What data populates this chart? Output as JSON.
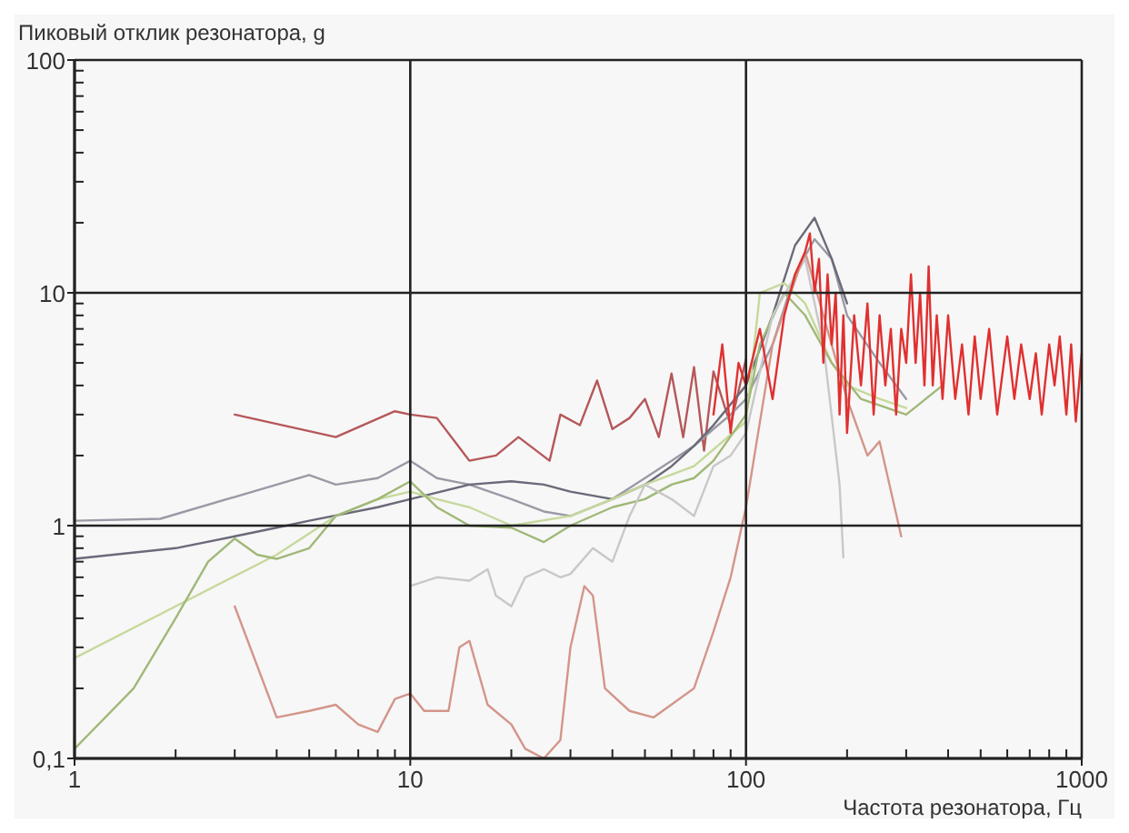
{
  "chart_data": {
    "type": "line",
    "xlabel": "Частота резонатора, Гц",
    "ylabel": "Пиковый отклик резонатора, g",
    "log": "xy",
    "grid": true,
    "xlim": [
      1,
      1000
    ],
    "xticks": [
      1,
      10,
      100,
      1000
    ],
    "ylim": [
      0.1,
      100
    ],
    "yticks": [
      {
        "value": 0.1,
        "label": "0,1"
      },
      1,
      10,
      100
    ],
    "series": [
      {
        "color": "#b5585a",
        "x": [
          3,
          6,
          9,
          10,
          12,
          15,
          18,
          21,
          26,
          28,
          32,
          36,
          40,
          45,
          50,
          55,
          60,
          65,
          70,
          75,
          80,
          90,
          100
        ],
        "values": [
          3,
          2.4,
          3.1,
          3.0,
          2.9,
          1.9,
          2.0,
          2.4,
          1.9,
          3.0,
          2.7,
          4.2,
          2.6,
          2.9,
          3.5,
          2.4,
          4.5,
          2.4,
          4.8,
          2.1,
          4.6,
          2.7,
          5.2
        ]
      },
      {
        "color": "#9a9aa6",
        "x": [
          1,
          1.8,
          5,
          6,
          8,
          10,
          12,
          15,
          20,
          25,
          30,
          40,
          50,
          60,
          70,
          80,
          90,
          100,
          120,
          140,
          160,
          180,
          200,
          250,
          300
        ],
        "values": [
          1.05,
          1.07,
          1.65,
          1.5,
          1.6,
          1.9,
          1.6,
          1.5,
          1.3,
          1.15,
          1.1,
          1.3,
          1.6,
          1.9,
          2.2,
          2.6,
          3.0,
          3.5,
          6,
          12,
          17,
          14,
          8,
          5,
          3.5
        ]
      },
      {
        "color": "#6a6a7a",
        "x": [
          1,
          2,
          3,
          4,
          5,
          8,
          10,
          15,
          20,
          25,
          30,
          40,
          50,
          60,
          70,
          80,
          100,
          120,
          140,
          160,
          180,
          200
        ],
        "values": [
          0.72,
          0.8,
          0.9,
          0.98,
          1.05,
          1.2,
          1.3,
          1.5,
          1.55,
          1.5,
          1.4,
          1.3,
          1.5,
          1.8,
          2.2,
          2.7,
          4,
          8,
          16,
          21,
          14,
          9
        ]
      },
      {
        "color": "#c6d99c",
        "x": [
          1,
          2,
          4,
          6,
          8,
          10,
          12,
          15,
          20,
          30,
          40,
          50,
          70,
          100,
          110,
          130,
          150,
          180,
          200,
          250,
          300
        ],
        "values": [
          0.27,
          0.45,
          0.75,
          1.1,
          1.3,
          1.4,
          1.3,
          1.2,
          1.0,
          1.1,
          1.3,
          1.5,
          1.8,
          2.8,
          10,
          11,
          9,
          5,
          4,
          3.5,
          3.2
        ]
      },
      {
        "color": "#a0b878",
        "x": [
          1,
          1.5,
          2,
          2.5,
          3,
          3.5,
          4,
          5,
          6,
          8,
          10,
          12,
          15,
          20,
          25,
          30,
          40,
          50,
          60,
          70,
          80,
          100,
          110,
          130,
          150,
          180,
          220,
          300,
          385
        ],
        "values": [
          0.11,
          0.2,
          0.4,
          0.7,
          0.88,
          0.75,
          0.72,
          0.8,
          1.1,
          1.3,
          1.55,
          1.2,
          1.0,
          0.98,
          0.85,
          1.0,
          1.2,
          1.3,
          1.5,
          1.6,
          1.9,
          3,
          6,
          10,
          8,
          5,
          3.5,
          3,
          4
        ]
      },
      {
        "color": "#c8c8c8",
        "x": [
          10,
          12,
          15,
          17,
          18,
          20,
          22,
          25,
          28,
          30,
          35,
          40,
          45,
          50,
          60,
          70,
          80,
          90,
          100,
          120,
          150,
          170,
          190,
          195
        ],
        "values": [
          0.55,
          0.6,
          0.58,
          0.65,
          0.5,
          0.45,
          0.6,
          0.65,
          0.6,
          0.62,
          0.8,
          0.7,
          1.1,
          1.5,
          1.3,
          1.1,
          1.8,
          2.0,
          2.5,
          8,
          14,
          6,
          1.5,
          0.73
        ]
      },
      {
        "color": "#d4958a",
        "x": [
          3,
          4,
          5,
          6,
          7,
          8,
          9,
          10,
          11,
          13,
          14,
          15,
          17,
          20,
          22,
          25,
          28,
          30,
          33,
          35,
          38,
          45,
          53,
          70,
          80,
          90,
          100,
          120,
          150,
          170,
          200,
          230,
          250,
          290
        ],
        "values": [
          0.45,
          0.15,
          0.16,
          0.17,
          0.14,
          0.13,
          0.18,
          0.19,
          0.16,
          0.16,
          0.3,
          0.32,
          0.17,
          0.14,
          0.11,
          0.1,
          0.12,
          0.3,
          0.55,
          0.5,
          0.2,
          0.16,
          0.15,
          0.2,
          0.35,
          0.6,
          1.2,
          6,
          15,
          8,
          3.5,
          2,
          2.3,
          0.9
        ]
      },
      {
        "color": "#e03030",
        "x": [
          80,
          85,
          90,
          95,
          100,
          110,
          120,
          130,
          140,
          150,
          155,
          160,
          165,
          170,
          175,
          180,
          185,
          190,
          195,
          200,
          210,
          220,
          230,
          240,
          250,
          260,
          270,
          280,
          290,
          300,
          310,
          320,
          330,
          340,
          350,
          360,
          370,
          385,
          400,
          420,
          440,
          460,
          480,
          500,
          530,
          560,
          600,
          630,
          660,
          700,
          730,
          760,
          800,
          830,
          860,
          900,
          930,
          960,
          1000
        ],
        "values": [
          3,
          6,
          2.5,
          5,
          4,
          7,
          3.5,
          8,
          12,
          15,
          18,
          10,
          14,
          5,
          12,
          6,
          10,
          3,
          8,
          2.5,
          8,
          4,
          9,
          3,
          8,
          4,
          7,
          3,
          7,
          5,
          12,
          5,
          10,
          4,
          13,
          4,
          8,
          3.5,
          8,
          3.5,
          6,
          3,
          6.5,
          3.5,
          7,
          3,
          6.5,
          3.5,
          6,
          3.5,
          5.5,
          3,
          6,
          4,
          6.5,
          3,
          6,
          2.8,
          5.5
        ]
      }
    ]
  }
}
